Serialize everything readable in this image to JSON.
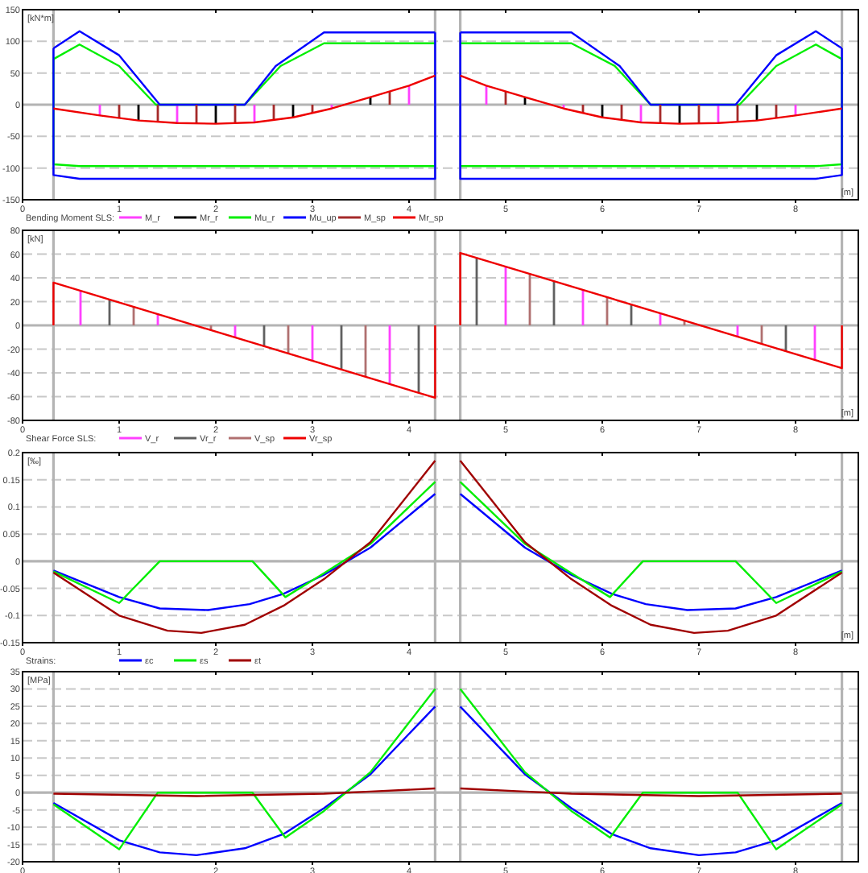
{
  "chart_data": [
    {
      "type": "line",
      "ylabel": "[kN*m]",
      "xlabel": "[m]",
      "legend_title": "Bending Moment SLS:",
      "legend": "bottom left",
      "grid": "y",
      "xlim": [
        0,
        8.65
      ],
      "xticks": [
        0,
        1,
        2,
        3,
        4,
        5,
        6,
        7,
        8
      ],
      "ylim": [
        -150,
        150
      ],
      "yticks": [
        -150,
        -100,
        -50,
        0,
        50,
        100,
        150
      ],
      "ref_lines": [
        {
          "axis": "y",
          "value": 0,
          "color": "#b4b4b4"
        },
        {
          "axis": "x",
          "value": 0.32,
          "color": "#b4b4b4"
        },
        {
          "axis": "x",
          "value": 4.27,
          "color": "#b4b4b4"
        },
        {
          "axis": "x",
          "value": 4.53,
          "color": "#b4b4b4"
        },
        {
          "axis": "x",
          "value": 8.48,
          "color": "#b4b4b4"
        }
      ],
      "series": [
        {
          "name": "M_r",
          "type": "bar",
          "color": "#ff40ff",
          "x": [
            0.8,
            1.6,
            2.4,
            3.2,
            4.0,
            4.8,
            5.6,
            6.4,
            7.2,
            8.0
          ],
          "values": [
            -17,
            -29,
            -28,
            -6,
            30,
            30,
            -6,
            -28,
            -29,
            -17
          ]
        },
        {
          "name": "Mr_r",
          "type": "bar",
          "color": "#000000",
          "x": [
            1.2,
            2.0,
            2.8,
            3.6,
            5.2,
            6.0,
            6.8,
            7.6
          ],
          "values": [
            -25,
            -30,
            -20,
            12,
            12,
            -20,
            -30,
            -25
          ]
        },
        {
          "name": "Mu_r",
          "color": "#00ee00",
          "x": [
            0.32,
            0.59,
            1.0,
            1.38,
            2.3,
            2.67,
            3.12,
            4.27,
            null,
            4.53,
            5.68,
            6.13,
            6.5,
            7.42,
            7.8,
            8.21,
            8.48
          ],
          "values": [
            72,
            95,
            61,
            0,
            0,
            61,
            97,
            97,
            null,
            97,
            97,
            61,
            0,
            0,
            61,
            95,
            72
          ]
        },
        {
          "color": "#00ee00",
          "x": [
            0.32,
            0.32,
            0.59,
            4.27,
            null,
            4.53,
            8.21,
            8.48,
            8.48
          ],
          "values": [
            72,
            -94,
            -97,
            -97,
            null,
            -97,
            -97,
            -94,
            72
          ]
        },
        {
          "name": "Mu_up",
          "color": "#0000ff",
          "x": [
            0.32,
            0.59,
            1.0,
            1.42,
            2.3,
            2.62,
            3.12,
            4.27,
            null,
            4.53,
            5.68,
            6.18,
            6.5,
            7.38,
            7.8,
            8.21,
            8.48
          ],
          "values": [
            89,
            116,
            78,
            0,
            0,
            61,
            114,
            114,
            null,
            114,
            114,
            61,
            0,
            0,
            78,
            116,
            89
          ]
        },
        {
          "color": "#0000ff",
          "x": [
            0.32,
            0.32,
            0.59,
            4.27,
            4.27,
            null,
            4.53,
            4.53,
            8.21,
            8.48,
            8.48
          ],
          "values": [
            89,
            -111,
            -117,
            -117,
            114,
            null,
            114,
            -117,
            -117,
            -111,
            89
          ]
        },
        {
          "name": "M_sp",
          "type": "bar",
          "color": "#a52a2a",
          "x": [
            1.0,
            1.4,
            1.8,
            2.2,
            2.6,
            3.0,
            3.4,
            3.8,
            5.0,
            5.4,
            5.8,
            6.2,
            6.6,
            7.0,
            7.4,
            7.8
          ],
          "values": [
            -21,
            -27,
            -30,
            -29,
            -24,
            -13,
            null,
            21,
            21,
            null,
            -13,
            -24,
            -29,
            -30,
            -27,
            -21
          ]
        },
        {
          "name": "Mr_sp",
          "color": "#ee0000",
          "x": [
            0.32,
            0.8,
            1.2,
            1.6,
            2.0,
            2.4,
            2.8,
            3.2,
            3.6,
            4.0,
            4.27,
            null,
            4.53,
            4.8,
            5.2,
            5.6,
            6.0,
            6.4,
            6.8,
            7.2,
            7.6,
            8.0,
            8.48
          ],
          "values": [
            -6,
            -17,
            -25,
            -29,
            -30,
            -28,
            -20,
            -6,
            12,
            30,
            46,
            null,
            46,
            30,
            12,
            -6,
            -20,
            -28,
            -30,
            -29,
            -25,
            -17,
            -6
          ]
        }
      ]
    },
    {
      "type": "line",
      "ylabel": "[kN]",
      "xlabel": "[m]",
      "legend_title": "Shear Force SLS:",
      "legend": "bottom left",
      "grid": "y",
      "xlim": [
        0,
        8.65
      ],
      "xticks": [
        0,
        1,
        2,
        3,
        4,
        5,
        6,
        7,
        8
      ],
      "ylim": [
        -80,
        80
      ],
      "yticks": [
        -80,
        -60,
        -40,
        -20,
        0,
        20,
        40,
        60,
        80
      ],
      "ref_lines": [
        {
          "axis": "y",
          "value": 0,
          "color": "#b4b4b4"
        },
        {
          "axis": "x",
          "value": 0.32,
          "color": "#b4b4b4"
        },
        {
          "axis": "x",
          "value": 4.27,
          "color": "#b4b4b4"
        },
        {
          "axis": "x",
          "value": 4.53,
          "color": "#b4b4b4"
        },
        {
          "axis": "x",
          "value": 8.48,
          "color": "#b4b4b4"
        }
      ],
      "series": [
        {
          "name": "V_r",
          "type": "bar",
          "color": "#ff40ff",
          "x": [
            0.6,
            1.4,
            2.2,
            3.0,
            3.8,
            5.0,
            5.8,
            6.6,
            7.4,
            8.2
          ],
          "values": [
            29,
            10,
            -10,
            -30,
            -49,
            49,
            30,
            10,
            -10,
            -29
          ]
        },
        {
          "name": "Vr_r",
          "type": "bar",
          "color": "#606060",
          "x": [
            0.9,
            1.7,
            2.5,
            3.3,
            4.1,
            4.7,
            5.5,
            6.3,
            7.1,
            7.9
          ],
          "values": [
            22,
            null,
            -18,
            -37,
            -57,
            57,
            37,
            18,
            null,
            -22
          ]
        },
        {
          "name": "V_sp",
          "type": "bar",
          "color": "#b07070",
          "x": [
            1.15,
            1.95,
            2.75,
            3.55,
            5.25,
            6.05,
            6.85,
            7.65
          ],
          "values": [
            16,
            -4,
            -24,
            -43,
            43,
            24,
            4,
            -16
          ]
        },
        {
          "name": "Vr_sp",
          "color": "#ee0000",
          "x": [
            0.32,
            0.32,
            4.27,
            4.27,
            null,
            4.53,
            4.53,
            8.48,
            8.48
          ],
          "values": [
            0,
            36,
            -61,
            0,
            null,
            0,
            61,
            -36,
            0
          ]
        }
      ]
    },
    {
      "type": "line",
      "ylabel": "[‰]",
      "xlabel": "[m]",
      "legend_title": "Strains:",
      "legend": "bottom left",
      "grid": "y",
      "xlim": [
        0,
        8.65
      ],
      "xticks": [
        0,
        1,
        2,
        3,
        4,
        5,
        6,
        7,
        8
      ],
      "ylim": [
        -0.15,
        0.2
      ],
      "yticks": [
        -0.15,
        -0.1,
        -0.05,
        0,
        0.05,
        0.1,
        0.15,
        0.2
      ],
      "ref_lines": [
        {
          "axis": "y",
          "value": 0,
          "color": "#b4b4b4"
        },
        {
          "axis": "x",
          "value": 0.32,
          "color": "#b4b4b4"
        },
        {
          "axis": "x",
          "value": 4.27,
          "color": "#b4b4b4"
        },
        {
          "axis": "x",
          "value": 4.53,
          "color": "#b4b4b4"
        },
        {
          "axis": "x",
          "value": 8.48,
          "color": "#b4b4b4"
        }
      ],
      "series": [
        {
          "name": "εc",
          "color": "#0000ff",
          "x": [
            0.32,
            1.0,
            1.42,
            1.92,
            2.35,
            2.7,
            3.12,
            3.6,
            4.27,
            null,
            4.53,
            5.2,
            5.68,
            6.1,
            6.45,
            6.88,
            7.38,
            7.8,
            8.48
          ],
          "values": [
            -0.017,
            -0.066,
            -0.087,
            -0.09,
            -0.079,
            -0.06,
            -0.025,
            0.025,
            0.124,
            null,
            0.124,
            0.025,
            -0.025,
            -0.06,
            -0.079,
            -0.09,
            -0.087,
            -0.066,
            -0.017
          ]
        },
        {
          "name": "εs",
          "color": "#00ee00",
          "x": [
            0.32,
            1.0,
            1.42,
            2.38,
            2.72,
            3.12,
            3.6,
            4.27,
            null,
            4.53,
            5.2,
            5.68,
            6.08,
            6.42,
            7.38,
            7.8,
            8.48
          ],
          "values": [
            -0.019,
            -0.077,
            0,
            0,
            -0.066,
            -0.022,
            0.032,
            0.146,
            null,
            0.146,
            0.032,
            -0.022,
            -0.066,
            0,
            0,
            -0.077,
            -0.019
          ]
        },
        {
          "name": "εt",
          "color": "#a00000",
          "x": [
            0.32,
            1.0,
            1.5,
            1.85,
            2.3,
            2.7,
            3.12,
            3.6,
            4.27,
            null,
            4.53,
            5.2,
            5.68,
            6.1,
            6.5,
            6.95,
            7.3,
            7.8,
            8.48
          ],
          "values": [
            -0.021,
            -0.1,
            -0.128,
            -0.132,
            -0.117,
            -0.082,
            -0.033,
            0.035,
            0.185,
            null,
            0.185,
            0.035,
            -0.033,
            -0.082,
            -0.117,
            -0.132,
            -0.128,
            -0.1,
            -0.021
          ]
        }
      ]
    },
    {
      "type": "line",
      "ylabel": "[MPa]",
      "grid": "y",
      "xlim": [
        0,
        8.65
      ],
      "xticks": [
        0,
        1,
        2,
        3,
        4,
        5,
        6,
        7,
        8
      ],
      "ylim": [
        -20,
        35
      ],
      "yticks": [
        -20,
        -15,
        -10,
        -5,
        0,
        5,
        10,
        15,
        20,
        25,
        30,
        35
      ],
      "ref_lines": [
        {
          "axis": "y",
          "value": 0,
          "color": "#b4b4b4"
        },
        {
          "axis": "x",
          "value": 0.32,
          "color": "#b4b4b4"
        },
        {
          "axis": "x",
          "value": 4.27,
          "color": "#b4b4b4"
        },
        {
          "axis": "x",
          "value": 4.53,
          "color": "#b4b4b4"
        },
        {
          "axis": "x",
          "value": 8.48,
          "color": "#b4b4b4"
        }
      ],
      "series": [
        {
          "color": "#0000ff",
          "x": [
            0.32,
            1.0,
            1.42,
            1.8,
            2.3,
            2.7,
            3.12,
            3.6,
            4.27,
            null,
            4.53,
            5.2,
            5.68,
            6.1,
            6.5,
            7.0,
            7.38,
            7.8,
            8.48
          ],
          "values": [
            -3,
            -13.8,
            -17.3,
            -18.1,
            -16.1,
            -12,
            -4.5,
            5.3,
            24.9,
            null,
            24.9,
            5.3,
            -4.5,
            -12,
            -16.1,
            -18.1,
            -17.3,
            -13.8,
            -3
          ]
        },
        {
          "color": "#00ee00",
          "x": [
            0.32,
            1.0,
            1.4,
            2.38,
            2.72,
            3.12,
            3.6,
            4.27,
            null,
            4.53,
            5.2,
            5.68,
            6.08,
            6.42,
            7.4,
            7.8,
            8.48
          ],
          "values": [
            -3.4,
            -16.4,
            0,
            0,
            -13,
            -5.3,
            5.9,
            30,
            null,
            30,
            5.9,
            -5.3,
            -13,
            0,
            0,
            -16.4,
            -3.4
          ]
        },
        {
          "color": "#a00000",
          "x": [
            0.32,
            1.8,
            3.12,
            3.6,
            4.27,
            null,
            4.53,
            5.2,
            5.68,
            7.0,
            8.48
          ],
          "values": [
            -0.3,
            -1,
            -0.3,
            0.3,
            1.2,
            null,
            1.2,
            0.3,
            -0.3,
            -1,
            -0.3
          ]
        }
      ]
    }
  ]
}
